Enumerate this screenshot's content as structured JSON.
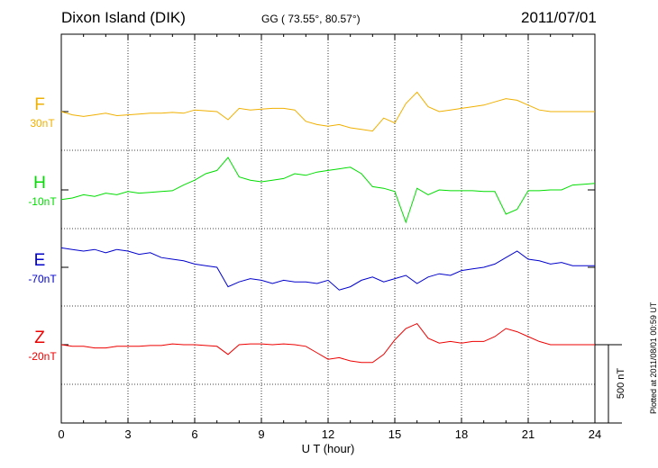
{
  "header": {
    "station": "Dixon Island (DIK)",
    "coords": "GG ( 73.55°,  80.57°)",
    "date": "2011/07/01"
  },
  "footer": {
    "plotted": "Plotted at 2011/08/01 00:59 UT"
  },
  "chart_data": {
    "type": "line",
    "xlabel": "U T (hour)",
    "xlim": [
      0,
      24
    ],
    "xticks": [
      "0",
      "3",
      "6",
      "9",
      "12",
      "15",
      "18",
      "21",
      "24"
    ],
    "scale_bar_label": "500 nT",
    "grid": true,
    "series": [
      {
        "name": "F",
        "offset_label": "30nT",
        "color": "#f0b000",
        "baseline_nT": 0,
        "x": [
          0,
          0.5,
          1,
          1.5,
          2,
          2.5,
          3,
          3.5,
          4,
          4.5,
          5,
          5.5,
          6,
          6.5,
          7,
          7.5,
          8,
          8.5,
          9,
          9.5,
          10,
          10.5,
          11,
          11.5,
          12,
          12.5,
          13,
          13.5,
          14,
          14.5,
          15,
          15.5,
          16,
          16.5,
          17,
          17.5,
          18,
          18.5,
          19,
          19.5,
          20,
          20.5,
          21,
          21.5,
          22,
          22.5,
          23,
          23.5,
          24
        ],
        "y": [
          0,
          -20,
          -30,
          -20,
          -10,
          -25,
          -20,
          -15,
          -10,
          -10,
          -5,
          -10,
          10,
          5,
          0,
          -50,
          20,
          10,
          15,
          20,
          20,
          10,
          -60,
          -80,
          -90,
          -80,
          -100,
          -110,
          -120,
          -40,
          -70,
          50,
          120,
          30,
          0,
          10,
          20,
          30,
          40,
          60,
          80,
          70,
          40,
          10,
          0,
          0,
          0,
          0,
          0
        ]
      },
      {
        "name": "H",
        "offset_label": "-10nT",
        "color": "#00dd00",
        "baseline_nT": 0,
        "x": [
          0,
          0.5,
          1,
          1.5,
          2,
          2.5,
          3,
          3.5,
          4,
          4.5,
          5,
          5.5,
          6,
          6.5,
          7,
          7.5,
          8,
          8.5,
          9,
          9.5,
          10,
          10.5,
          11,
          11.5,
          12,
          12.5,
          13,
          13.5,
          14,
          14.5,
          15,
          15.5,
          16,
          16.5,
          17,
          17.5,
          18,
          18.5,
          19,
          19.5,
          20,
          20.5,
          21,
          21.5,
          22,
          22.5,
          23,
          23.5,
          24
        ],
        "y": [
          -60,
          -50,
          -30,
          -40,
          -20,
          -30,
          -10,
          -20,
          -15,
          -10,
          -5,
          30,
          60,
          100,
          120,
          200,
          80,
          60,
          50,
          60,
          70,
          100,
          90,
          110,
          120,
          130,
          140,
          100,
          20,
          10,
          -10,
          -200,
          10,
          -30,
          0,
          -5,
          -5,
          -5,
          -10,
          -10,
          -150,
          -120,
          -5,
          -5,
          0,
          0,
          30,
          35,
          40
        ]
      },
      {
        "name": "E",
        "offset_label": "-70nT",
        "color": "#0000cc",
        "baseline_nT": 0,
        "x": [
          0,
          0.5,
          1,
          1.5,
          2,
          2.5,
          3,
          3.5,
          4,
          4.5,
          5,
          5.5,
          6,
          6.5,
          7,
          7.5,
          8,
          8.5,
          9,
          9.5,
          10,
          10.5,
          11,
          11.5,
          12,
          12.5,
          13,
          13.5,
          14,
          14.5,
          15,
          15.5,
          16,
          16.5,
          17,
          17.5,
          18,
          18.5,
          19,
          19.5,
          20,
          20.5,
          21,
          21.5,
          22,
          22.5,
          23,
          23.5,
          24
        ],
        "y": [
          120,
          110,
          100,
          110,
          90,
          110,
          100,
          80,
          90,
          60,
          50,
          40,
          20,
          10,
          0,
          -120,
          -90,
          -70,
          -80,
          -100,
          -80,
          -90,
          -90,
          -100,
          -80,
          -140,
          -120,
          -80,
          -60,
          -90,
          -70,
          -50,
          -100,
          -60,
          -40,
          -50,
          -20,
          -10,
          0,
          20,
          60,
          100,
          50,
          40,
          20,
          30,
          10,
          10,
          10
        ]
      },
      {
        "name": "Z",
        "offset_label": "-20nT",
        "color": "#ee0000",
        "baseline_nT": 0,
        "x": [
          0,
          0.5,
          1,
          1.5,
          2,
          2.5,
          3,
          3.5,
          4,
          4.5,
          5,
          5.5,
          6,
          6.5,
          7,
          7.5,
          8,
          8.5,
          9,
          9.5,
          10,
          10.5,
          11,
          11.5,
          12,
          12.5,
          13,
          13.5,
          14,
          14.5,
          15,
          15.5,
          16,
          16.5,
          17,
          17.5,
          18,
          18.5,
          19,
          19.5,
          20,
          20.5,
          21,
          21.5,
          22,
          22.5,
          23,
          23.5,
          24
        ],
        "y": [
          0,
          -10,
          -10,
          -20,
          -20,
          -10,
          -10,
          -10,
          -5,
          -5,
          5,
          0,
          0,
          -5,
          -10,
          -60,
          0,
          5,
          5,
          0,
          5,
          0,
          -10,
          -50,
          -90,
          -80,
          -100,
          -110,
          -110,
          -60,
          30,
          100,
          130,
          40,
          10,
          20,
          10,
          20,
          20,
          50,
          100,
          80,
          50,
          20,
          0,
          0,
          0,
          0,
          0
        ]
      }
    ]
  }
}
